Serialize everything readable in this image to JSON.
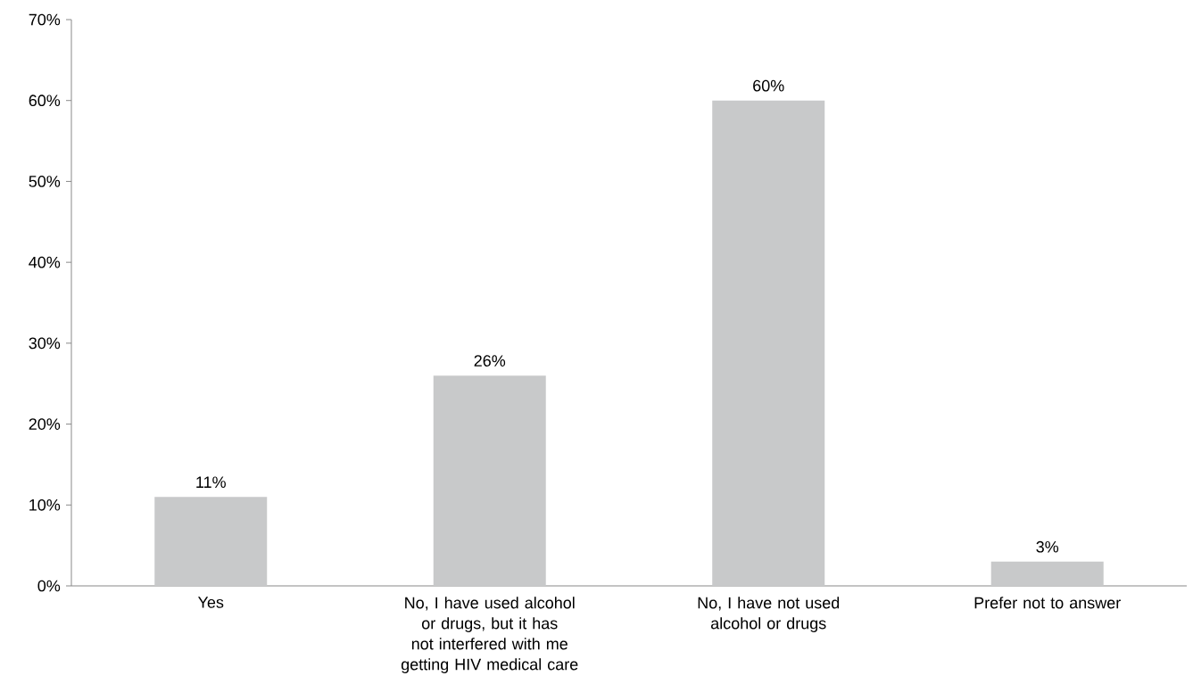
{
  "chart_data": {
    "type": "bar",
    "categories": [
      "Yes",
      "No, I have used alcohol or drugs, but it has not interfered with me getting HIV medical care",
      "No, I have not used alcohol or drugs",
      "Prefer not to answer"
    ],
    "values": [
      11,
      26,
      60,
      3
    ],
    "value_labels": [
      "11%",
      "26%",
      "60%",
      "3%"
    ],
    "color": "#c8c9ca",
    "ylim": [
      0,
      70
    ],
    "yticks": [
      {
        "value": 0,
        "label": "0%"
      },
      {
        "value": 10,
        "label": "10%"
      },
      {
        "value": 20,
        "label": "20%"
      },
      {
        "value": 30,
        "label": "30%"
      },
      {
        "value": 40,
        "label": "40%"
      },
      {
        "value": 50,
        "label": "50%"
      },
      {
        "value": 60,
        "label": "60%"
      },
      {
        "value": 70,
        "label": "70%"
      }
    ],
    "grid": false
  }
}
